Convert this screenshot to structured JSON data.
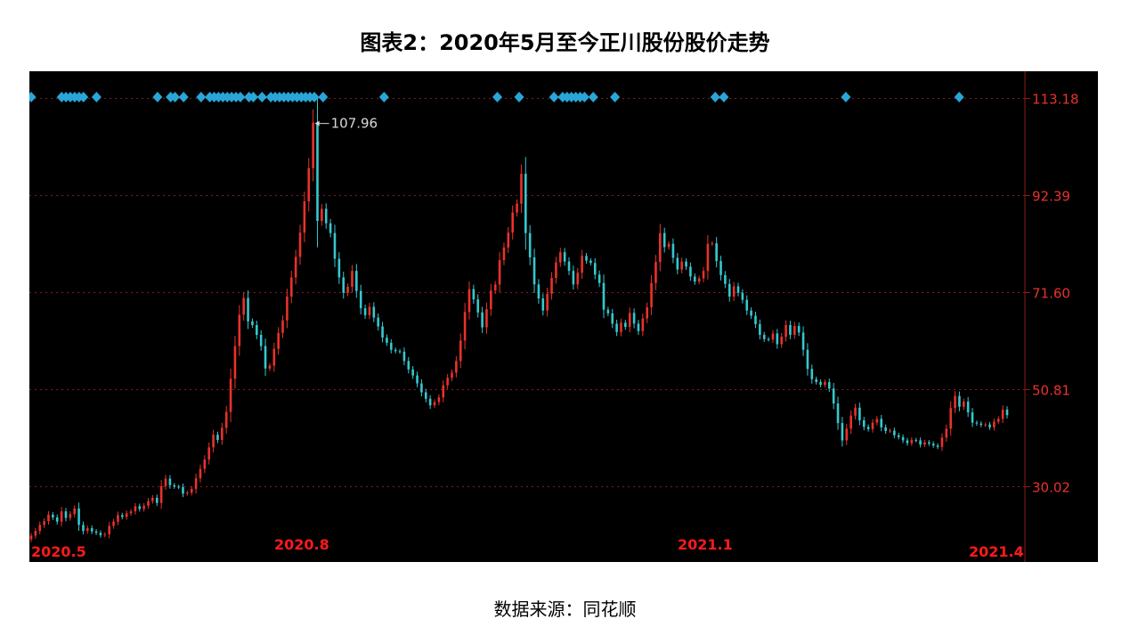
{
  "title": "图表2：2020年5月至今正川股份股价走势",
  "source": "数据来源：同花顺",
  "colors": {
    "up": "#e8322b",
    "down": "#35c8cf",
    "grid": "#8b1a1a",
    "axis_label": "#e8322b",
    "date_label": "#ff1a1a",
    "marker": "#2aa5d8",
    "annotation": "#d9d9d9",
    "background": "#000000"
  },
  "chart_data": {
    "type": "candlestick",
    "title": "图表2：2020年5月至今正川股份股价走势",
    "ylim": [
      15,
      118
    ],
    "y_ticks": [
      "113.18",
      "92.39",
      "71.60",
      "50.81",
      "30.02"
    ],
    "x_tick_labels": [
      "2020.5",
      "2020.8",
      "2021.1",
      "2021.4"
    ],
    "annotation": "107.96",
    "markers_count": 52,
    "closes": [
      19.5,
      20.5,
      21.8,
      22.6,
      24.0,
      23.4,
      22.5,
      24.7,
      23.3,
      24.1,
      25.3,
      21.8,
      20.5,
      21.1,
      20.4,
      20.1,
      19.6,
      19.8,
      21.6,
      22.5,
      23.9,
      23.5,
      24.3,
      24.7,
      25.8,
      25.2,
      25.9,
      26.9,
      27.6,
      26.5,
      30.1,
      31.7,
      30.3,
      30.0,
      29.9,
      28.5,
      28.7,
      29.5,
      31.8,
      33.8,
      35.8,
      38.4,
      41.1,
      40.0,
      42.6,
      46.0,
      53.1,
      60.1,
      66.8,
      70.4,
      65.4,
      64.6,
      62.5,
      60.1,
      55.3,
      55.9,
      59.5,
      62.9,
      65.6,
      70.7,
      74.8,
      79.2,
      84.4,
      91.1,
      98.2,
      107.96,
      86.9,
      89.5,
      86.4,
      84.3,
      78.8,
      74.8,
      71.5,
      72.8,
      76.2,
      71.9,
      68.2,
      66.7,
      68.5,
      66.2,
      64.3,
      61.9,
      60.8,
      59.3,
      59.0,
      58.9,
      56.9,
      55.1,
      53.8,
      52.1,
      50.2,
      48.8,
      47.4,
      48.1,
      49.1,
      51.7,
      53.3,
      54.4,
      56.9,
      61.3,
      67.4,
      72.3,
      70.1,
      67.3,
      64.1,
      68.0,
      72.0,
      73.3,
      78.5,
      81.2,
      84.4,
      88.7,
      90.6,
      97.0,
      84.3,
      79.1,
      73.3,
      70.3,
      67.7,
      71.3,
      74.7,
      78.0,
      80.2,
      78.2,
      76.2,
      73.3,
      75.8,
      79.4,
      78.4,
      77.9,
      75.4,
      73.6,
      67.9,
      67.1,
      64.9,
      63.1,
      65.1,
      64.2,
      67.2,
      64.9,
      63.3,
      66.0,
      68.4,
      73.6,
      78.1,
      84.3,
      81.3,
      82.0,
      79.0,
      76.5,
      78.2,
      77.1,
      75.0,
      73.9,
      74.6,
      76.2,
      82.0,
      82.1,
      78.3,
      75.3,
      73.4,
      70.7,
      72.9,
      71.5,
      70.0,
      67.7,
      66.6,
      64.8,
      62.5,
      61.6,
      61.5,
      62.8,
      60.5,
      62.1,
      64.6,
      62.5,
      64.4,
      63.0,
      59.3,
      55.2,
      53.0,
      52.4,
      51.8,
      52.4,
      51.0,
      47.8,
      43.6,
      39.9,
      42.4,
      45.2,
      46.9,
      44.2,
      42.8,
      42.3,
      43.7,
      44.5,
      42.7,
      41.9,
      42.0,
      41.0,
      40.6,
      39.9,
      39.3,
      40.0,
      39.9,
      39.0,
      39.5,
      39.2,
      38.8,
      38.5,
      40.5,
      42.4,
      46.8,
      49.4,
      47.1,
      48.2,
      45.9,
      43.7,
      43.5,
      43.2,
      43.3,
      42.7,
      43.9,
      44.5,
      46.5,
      45.3
    ]
  }
}
